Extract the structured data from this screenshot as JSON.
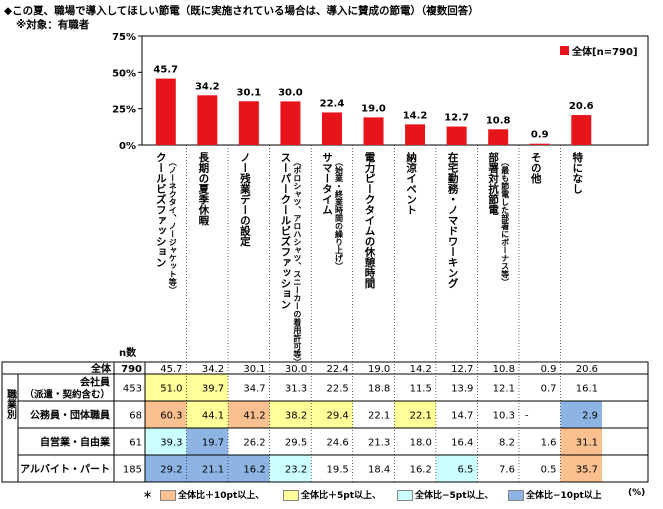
{
  "title": "◆この夏、職場で導入してほしい節電（既に実施されている場合は、導入に賛成の節電）（複数回答）",
  "subtitle": "※対象：有職者",
  "chart_data": {
    "type": "bar",
    "ylim": [
      0,
      75
    ],
    "yticks": [
      "0%",
      "25%",
      "50%",
      "75%"
    ],
    "legend": "全体[n=790]",
    "legend_position": "top-right",
    "bar_color": "#e8141b",
    "categories": [
      {
        "main": "クールビズファッション",
        "sub": "（ノーネクタイ、ノージャケット等）"
      },
      {
        "main": "長期の夏季休暇",
        "sub": ""
      },
      {
        "main": "ノー残業デーの設定",
        "sub": ""
      },
      {
        "main": "スーパークールビズファッション",
        "sub": "（ポロシャツ、アロハシャツ、スニーカーの着用許可等）"
      },
      {
        "main": "サマータイム",
        "sub": "（始業・終業時間の繰り上げ）"
      },
      {
        "main": "電力ピークタイムの休憩時間",
        "sub": ""
      },
      {
        "main": "納涼イベント",
        "sub": ""
      },
      {
        "main": "在宅勤務・ノマドワーキング",
        "sub": ""
      },
      {
        "main": "部署対抗節電",
        "sub": "（最も節電した部署にボーナス等）"
      },
      {
        "main": "その他",
        "sub": ""
      },
      {
        "main": "特になし",
        "sub": ""
      }
    ],
    "values": [
      45.7,
      34.2,
      30.1,
      30.0,
      22.4,
      19.0,
      14.2,
      12.7,
      10.8,
      0.9,
      20.6
    ],
    "value_labels": [
      "45.7",
      "34.2",
      "30.1",
      "30.0",
      "22.4",
      "19.0",
      "14.2",
      "12.7",
      "10.8",
      "0.9",
      "20.6"
    ]
  },
  "table": {
    "n_header": "n数",
    "side_label": "職業別",
    "total": {
      "label": "全体",
      "n": "790",
      "values": [
        "45.7",
        "34.2",
        "30.1",
        "30.0",
        "22.4",
        "19.0",
        "14.2",
        "12.7",
        "10.8",
        "0.9",
        "20.6"
      ]
    },
    "rows": [
      {
        "label": "会社員",
        "label2": "（派遣・契約含む）",
        "n": "453",
        "values": [
          "51.0",
          "39.7",
          "34.7",
          "31.3",
          "22.5",
          "18.8",
          "11.5",
          "13.9",
          "12.1",
          "0.7",
          "16.1"
        ],
        "levels": [
          "plus5",
          "plus5",
          "",
          "",
          "",
          "",
          "",
          "",
          "",
          "",
          ""
        ]
      },
      {
        "label": "公務員・団体職員",
        "label2": "",
        "n": "68",
        "values": [
          "60.3",
          "44.1",
          "41.2",
          "38.2",
          "29.4",
          "22.1",
          "22.1",
          "14.7",
          "10.3",
          "-",
          "2.9"
        ],
        "levels": [
          "plus10",
          "plus5",
          "plus10",
          "plus5",
          "plus5",
          "",
          "plus5",
          "",
          "",
          "",
          "minus10"
        ]
      },
      {
        "label": "自営業・自由業",
        "label2": "",
        "n": "61",
        "values": [
          "39.3",
          "19.7",
          "26.2",
          "29.5",
          "24.6",
          "21.3",
          "18.0",
          "16.4",
          "8.2",
          "1.6",
          "31.1"
        ],
        "levels": [
          "minus5",
          "minus10",
          "",
          "",
          "",
          "",
          "",
          "",
          "",
          "",
          "plus10"
        ]
      },
      {
        "label": "アルバイト・パート",
        "label2": "",
        "n": "185",
        "values": [
          "29.2",
          "21.1",
          "16.2",
          "23.2",
          "19.5",
          "18.4",
          "16.2",
          "6.5",
          "7.6",
          "0.5",
          "35.7"
        ],
        "levels": [
          "minus10",
          "minus10",
          "minus10",
          "minus5",
          "",
          "",
          "",
          "minus5",
          "",
          "",
          "plus10"
        ]
      }
    ]
  },
  "footnote": {
    "asterisk": "＊",
    "items": [
      "全体比＋10pt以上、",
      "全体比＋5pt以上、",
      "全体比−5pt以上、",
      "全体比−10pt以上"
    ],
    "unit": "(%)"
  },
  "colors": {
    "plus10": "#fac090",
    "plus5": "#ffff99",
    "minus5": "#ccffff",
    "minus10": "#8db4e2",
    "bar": "#e8141b"
  }
}
